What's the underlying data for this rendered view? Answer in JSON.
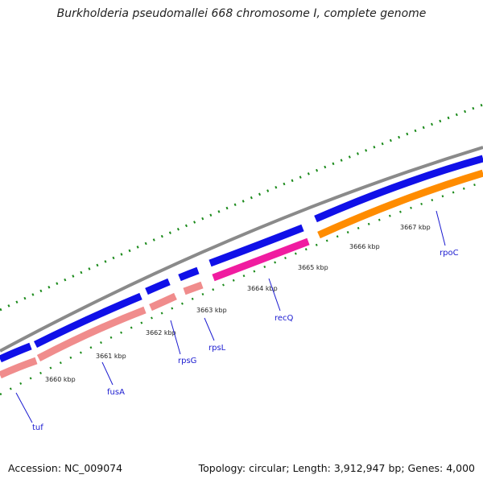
{
  "title": "Burkholderia pseudomallei 668 chromosome I, complete genome",
  "footer": {
    "accession": "Accession: NC_009074",
    "summary": "Topology: circular; Length: 3,912,947 bp; Genes: 4,000"
  },
  "scale_labels": [
    "3660 kbp",
    "3661 kbp",
    "3662 kbp",
    "3663 kbp",
    "3664 kbp",
    "3665 kbp",
    "3666 kbp",
    "3667 kbp"
  ],
  "genes": [
    "tuf",
    "fusA",
    "rpsG",
    "rpsL",
    "recQ",
    "rpoC"
  ],
  "colors": {
    "backbone": "#8a8a8a",
    "forward_track": "#1010e8",
    "rrna_like": "#f08c8c",
    "pink_gene": "#f01ca0",
    "orange_gene": "#ff8c00",
    "tick_green": "#1a8a1a",
    "label_blue": "#1a1ad0"
  }
}
